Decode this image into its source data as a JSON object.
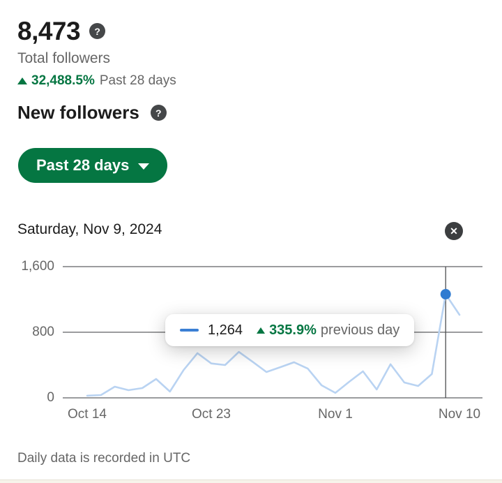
{
  "summary": {
    "value": "8,473",
    "label": "Total followers",
    "trend_pct": "32,488.5%",
    "trend_period": "Past 28 days"
  },
  "section": {
    "title": "New followers"
  },
  "range_button": {
    "label": "Past 28 days"
  },
  "chart_header": {
    "date": "Saturday, Nov 9, 2024"
  },
  "tooltip": {
    "value": "1,264",
    "trend_pct": "335.9%",
    "trend_label": "previous day"
  },
  "footer": {
    "note": "Daily data is recorded in UTC"
  },
  "icons": {
    "help": "?",
    "close": "✕"
  },
  "colors": {
    "green": "#057642",
    "button_green": "#057642",
    "line_blue": "#b9d3f2",
    "dot_blue": "#2f7bd1",
    "swatch_blue": "#3b7fd4",
    "grid": "#5f6163",
    "text_primary": "#1c1c1c",
    "text_secondary": "#666666"
  },
  "chart_data": {
    "type": "line",
    "title": "New followers per day",
    "categories": [
      "Oct 14",
      "Oct 15",
      "Oct 16",
      "Oct 17",
      "Oct 18",
      "Oct 19",
      "Oct 20",
      "Oct 21",
      "Oct 22",
      "Oct 23",
      "Oct 24",
      "Oct 25",
      "Oct 26",
      "Oct 27",
      "Oct 28",
      "Oct 29",
      "Oct 30",
      "Oct 31",
      "Nov 1",
      "Nov 2",
      "Nov 3",
      "Nov 4",
      "Nov 5",
      "Nov 6",
      "Nov 7",
      "Nov 8",
      "Nov 9",
      "Nov 10"
    ],
    "values": [
      26,
      34,
      136,
      94,
      119,
      230,
      77,
      340,
      545,
      420,
      400,
      560,
      440,
      315,
      374,
      434,
      357,
      153,
      60,
      196,
      323,
      102,
      409,
      187,
      145,
      290,
      1264,
      1013
    ],
    "ylim": [
      0,
      1600
    ],
    "grid": true,
    "y_ticks": [
      {
        "value": 0,
        "label": "0"
      },
      {
        "value": 800,
        "label": "800"
      },
      {
        "value": 1600,
        "label": "1,600"
      }
    ],
    "x_ticks": [
      {
        "index": 0,
        "label": "Oct 14"
      },
      {
        "index": 9,
        "label": "Oct 23"
      },
      {
        "index": 18,
        "label": "Nov 1"
      },
      {
        "index": 27,
        "label": "Nov 10"
      }
    ],
    "highlight_index": 26,
    "highlight_value": 1264,
    "highlight_date": "Saturday, Nov 9, 2024"
  }
}
